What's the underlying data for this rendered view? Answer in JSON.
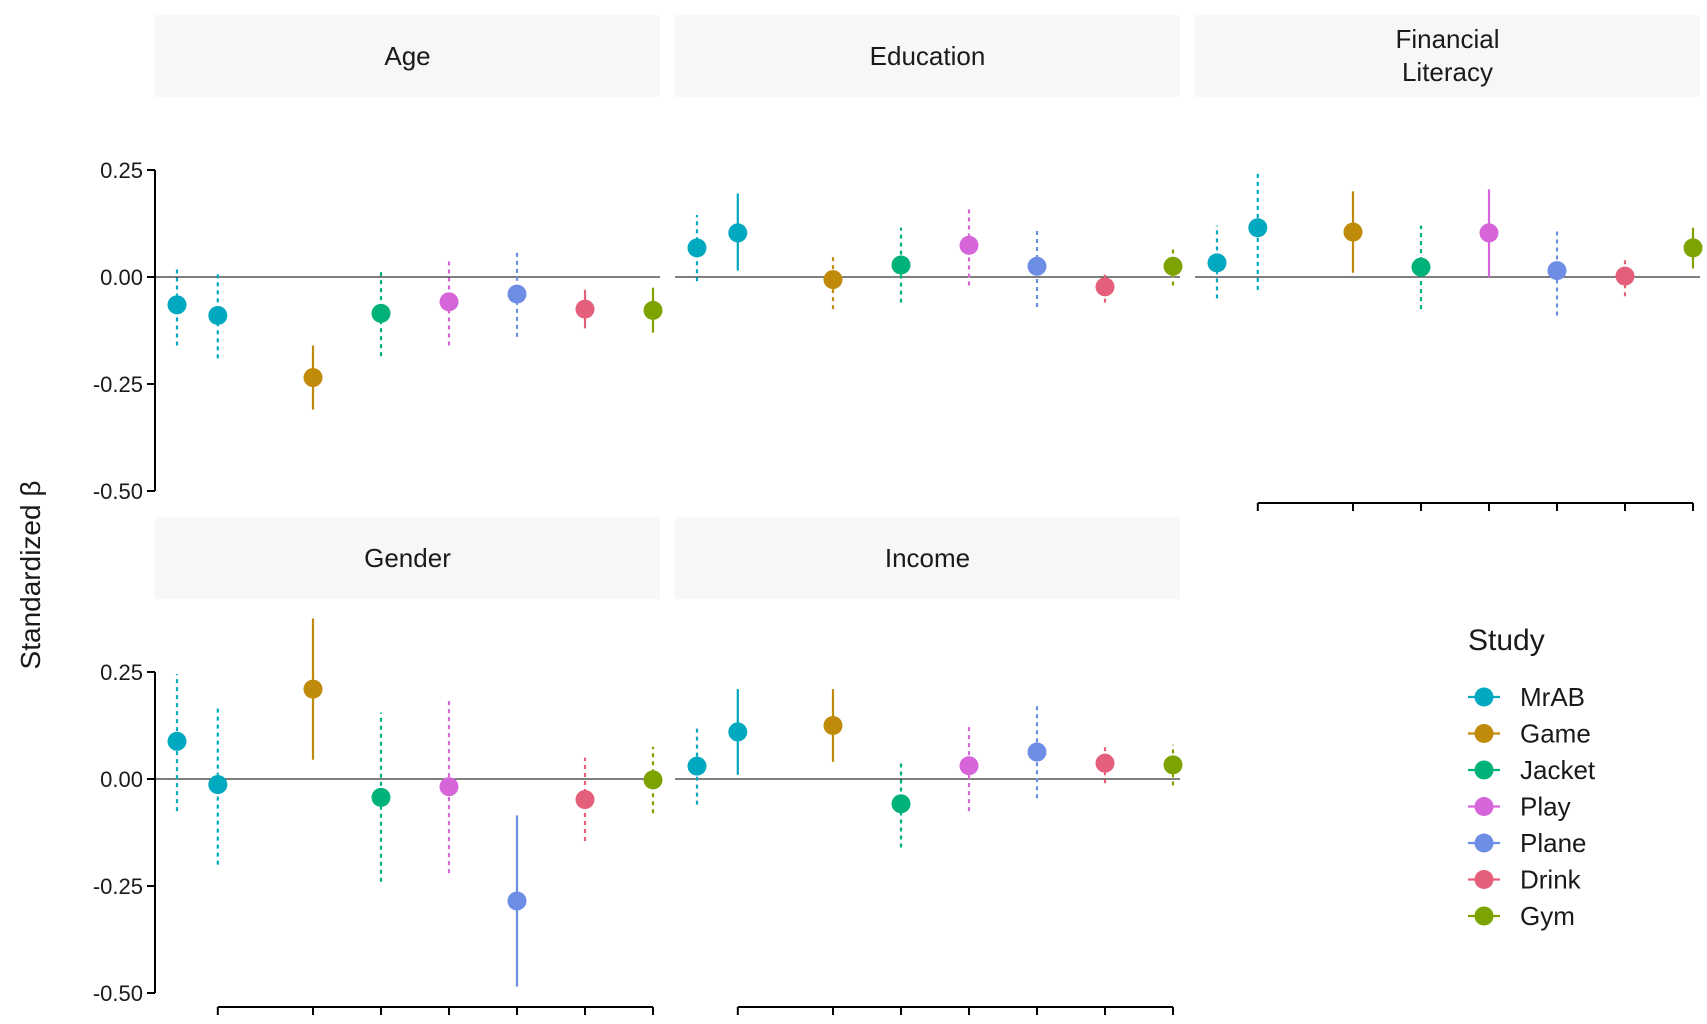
{
  "chart_data": {
    "type": "scatter",
    "subtype": "point-range faceted (2 rows x 3 columns)",
    "ylabel": "Standardized β",
    "ylim": [
      -0.5,
      0.25
    ],
    "yticks": [
      "0.25",
      "0.00",
      "-0.25",
      "-0.50"
    ],
    "reference_line_y": 0,
    "line_styles": {
      "solid": "CI excludes zero",
      "dashed": "CI includes zero"
    },
    "legend": {
      "title": "Study",
      "position": "right",
      "entries": [
        {
          "name": "MrAB",
          "color": "#00A9BF"
        },
        {
          "name": "Game",
          "color": "#C08A0A"
        },
        {
          "name": "Jacket",
          "color": "#00B27A"
        },
        {
          "name": "Play",
          "color": "#D665D9"
        },
        {
          "name": "Plane",
          "color": "#6E8EE6"
        },
        {
          "name": "Drink",
          "color": "#E4607A"
        },
        {
          "name": "Gym",
          "color": "#7CA300"
        }
      ]
    },
    "x_positions": [
      1,
      1.6,
      3,
      4,
      5,
      6,
      7,
      8
    ],
    "facets": [
      {
        "label": "Age",
        "row": 0,
        "col": 0,
        "points": [
          {
            "study": "MrAB",
            "slot": 0,
            "y": -0.065,
            "lo": -0.16,
            "hi": 0.02,
            "style": "dashed"
          },
          {
            "study": "MrAB",
            "slot": 1,
            "y": -0.09,
            "lo": -0.19,
            "hi": 0.01,
            "style": "dashed"
          },
          {
            "study": "Game",
            "slot": 2,
            "y": -0.235,
            "lo": -0.31,
            "hi": -0.16,
            "style": "solid"
          },
          {
            "study": "Jacket",
            "slot": 3,
            "y": -0.085,
            "lo": -0.185,
            "hi": 0.02,
            "style": "dashed"
          },
          {
            "study": "Play",
            "slot": 4,
            "y": -0.058,
            "lo": -0.16,
            "hi": 0.04,
            "style": "dashed"
          },
          {
            "study": "Plane",
            "slot": 5,
            "y": -0.04,
            "lo": -0.14,
            "hi": 0.06,
            "style": "dashed"
          },
          {
            "study": "Drink",
            "slot": 6,
            "y": -0.075,
            "lo": -0.12,
            "hi": -0.03,
            "style": "solid"
          },
          {
            "study": "Gym",
            "slot": 7,
            "y": -0.078,
            "lo": -0.13,
            "hi": -0.025,
            "style": "solid"
          }
        ]
      },
      {
        "label": "Education",
        "row": 0,
        "col": 1,
        "points": [
          {
            "study": "MrAB",
            "slot": 0,
            "y": 0.068,
            "lo": -0.01,
            "hi": 0.145,
            "style": "dashed"
          },
          {
            "study": "MrAB",
            "slot": 1,
            "y": 0.103,
            "lo": 0.015,
            "hi": 0.195,
            "style": "solid"
          },
          {
            "study": "Game",
            "slot": 2,
            "y": -0.006,
            "lo": -0.075,
            "hi": 0.055,
            "style": "dashed"
          },
          {
            "study": "Jacket",
            "slot": 3,
            "y": 0.028,
            "lo": -0.06,
            "hi": 0.115,
            "style": "dashed"
          },
          {
            "study": "Play",
            "slot": 4,
            "y": 0.074,
            "lo": -0.02,
            "hi": 0.16,
            "style": "dashed"
          },
          {
            "study": "Plane",
            "slot": 5,
            "y": 0.025,
            "lo": -0.07,
            "hi": 0.11,
            "style": "dashed"
          },
          {
            "study": "Drink",
            "slot": 6,
            "y": -0.023,
            "lo": -0.06,
            "hi": 0.015,
            "style": "dashed"
          },
          {
            "study": "Gym",
            "slot": 7,
            "y": 0.025,
            "lo": -0.02,
            "hi": 0.065,
            "style": "dashed"
          }
        ]
      },
      {
        "label": "Financial\nLiteracy",
        "row": 0,
        "col": 2,
        "points": [
          {
            "study": "MrAB",
            "slot": 0,
            "y": 0.033,
            "lo": -0.05,
            "hi": 0.12,
            "style": "dashed"
          },
          {
            "study": "MrAB",
            "slot": 1,
            "y": 0.115,
            "lo": -0.03,
            "hi": 0.25,
            "style": "dashed"
          },
          {
            "study": "Game",
            "slot": 2,
            "y": 0.105,
            "lo": 0.01,
            "hi": 0.2,
            "style": "solid"
          },
          {
            "study": "Jacket",
            "slot": 3,
            "y": 0.023,
            "lo": -0.075,
            "hi": 0.12,
            "style": "dashed"
          },
          {
            "study": "Play",
            "slot": 4,
            "y": 0.103,
            "lo": 0.0,
            "hi": 0.205,
            "style": "solid"
          },
          {
            "study": "Plane",
            "slot": 5,
            "y": 0.015,
            "lo": -0.09,
            "hi": 0.11,
            "style": "dashed"
          },
          {
            "study": "Drink",
            "slot": 6,
            "y": 0.002,
            "lo": -0.045,
            "hi": 0.04,
            "style": "dashed"
          },
          {
            "study": "Gym",
            "slot": 7,
            "y": 0.068,
            "lo": 0.02,
            "hi": 0.115,
            "style": "solid"
          }
        ]
      },
      {
        "label": "Gender",
        "row": 1,
        "col": 0,
        "points": [
          {
            "study": "MrAB",
            "slot": 0,
            "y": 0.088,
            "lo": -0.075,
            "hi": 0.245,
            "style": "dashed"
          },
          {
            "study": "MrAB",
            "slot": 1,
            "y": -0.013,
            "lo": -0.2,
            "hi": 0.17,
            "style": "dashed"
          },
          {
            "study": "Game",
            "slot": 2,
            "y": 0.21,
            "lo": 0.045,
            "hi": 0.375,
            "style": "solid"
          },
          {
            "study": "Jacket",
            "slot": 3,
            "y": -0.043,
            "lo": -0.24,
            "hi": 0.155,
            "style": "dashed"
          },
          {
            "study": "Play",
            "slot": 4,
            "y": -0.018,
            "lo": -0.22,
            "hi": 0.19,
            "style": "dashed"
          },
          {
            "study": "Plane",
            "slot": 5,
            "y": -0.285,
            "lo": -0.485,
            "hi": -0.085,
            "style": "solid"
          },
          {
            "study": "Drink",
            "slot": 6,
            "y": -0.048,
            "lo": -0.145,
            "hi": 0.05,
            "style": "dashed"
          },
          {
            "study": "Gym",
            "slot": 7,
            "y": -0.002,
            "lo": -0.08,
            "hi": 0.075,
            "style": "dashed"
          }
        ]
      },
      {
        "label": "Income",
        "row": 1,
        "col": 1,
        "points": [
          {
            "study": "MrAB",
            "slot": 0,
            "y": 0.03,
            "lo": -0.06,
            "hi": 0.12,
            "style": "dashed"
          },
          {
            "study": "MrAB",
            "slot": 1,
            "y": 0.11,
            "lo": 0.01,
            "hi": 0.21,
            "style": "solid"
          },
          {
            "study": "Game",
            "slot": 2,
            "y": 0.125,
            "lo": 0.04,
            "hi": 0.21,
            "style": "solid"
          },
          {
            "study": "Jacket",
            "slot": 3,
            "y": -0.058,
            "lo": -0.16,
            "hi": 0.04,
            "style": "dashed"
          },
          {
            "study": "Play",
            "slot": 4,
            "y": 0.031,
            "lo": -0.075,
            "hi": 0.125,
            "style": "dashed"
          },
          {
            "study": "Plane",
            "slot": 5,
            "y": 0.063,
            "lo": -0.045,
            "hi": 0.17,
            "style": "dashed"
          },
          {
            "study": "Drink",
            "slot": 6,
            "y": 0.037,
            "lo": -0.01,
            "hi": 0.075,
            "style": "dashed"
          },
          {
            "study": "Gym",
            "slot": 7,
            "y": 0.033,
            "lo": -0.015,
            "hi": 0.08,
            "style": "dashed"
          }
        ]
      }
    ]
  }
}
